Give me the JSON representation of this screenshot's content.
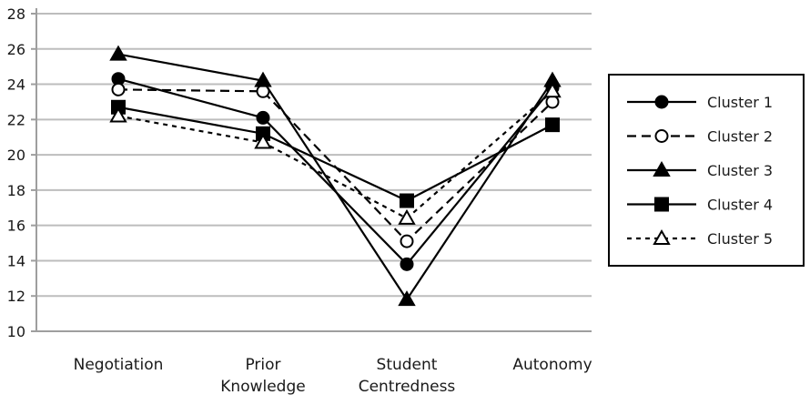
{
  "chart_data": {
    "type": "line",
    "title": "",
    "xlabel": "",
    "ylabel": "",
    "ylim": [
      10,
      28
    ],
    "yticks": [
      10,
      12,
      14,
      16,
      18,
      20,
      22,
      24,
      26,
      28
    ],
    "grid": true,
    "legend_position": "right",
    "categories": [
      [
        "Negotiation"
      ],
      [
        "Prior",
        "Knowledge"
      ],
      [
        "Student",
        "Centredness"
      ],
      [
        "Autonomy"
      ]
    ],
    "series": [
      {
        "name": "Cluster 1",
        "values": [
          24.3,
          22.1,
          13.8,
          23.8
        ],
        "marker": "circle-filled",
        "dash": "solid"
      },
      {
        "name": "Cluster 2",
        "values": [
          23.7,
          23.6,
          15.1,
          23.0
        ],
        "marker": "circle-open",
        "dash": "dashed"
      },
      {
        "name": "Cluster 3",
        "values": [
          25.7,
          24.2,
          11.8,
          24.2
        ],
        "marker": "triangle-filled",
        "dash": "solid"
      },
      {
        "name": "Cluster 4",
        "values": [
          22.7,
          21.2,
          17.4,
          21.7
        ],
        "marker": "square-filled",
        "dash": "solid"
      },
      {
        "name": "Cluster 5",
        "values": [
          22.2,
          20.7,
          16.4,
          23.6
        ],
        "marker": "triangle-open",
        "dash": "dotted"
      }
    ],
    "colors": {
      "line": "#000000",
      "grid": "#bdbdbd",
      "axis": "#9e9e9e"
    }
  }
}
